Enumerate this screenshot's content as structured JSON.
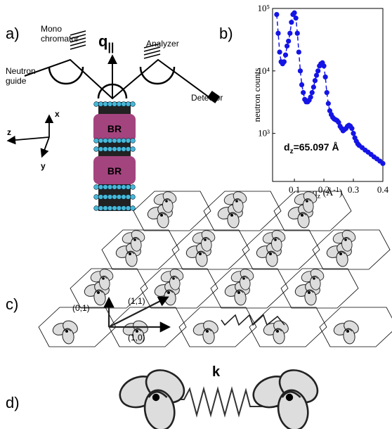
{
  "panel_a": {
    "label": "a)",
    "monochromator": [
      "Mono",
      "chromator"
    ],
    "neutron_guide": [
      "Neutron",
      "guide"
    ],
    "q": "q",
    "q_sub": "||",
    "analyzer": "Analyzer",
    "detector": "Detector",
    "br": [
      "BR",
      "BR"
    ],
    "axes": [
      "x",
      "z",
      "y"
    ]
  },
  "chart_data": {
    "type": "scatter",
    "label": "b)",
    "ylabel": "neutron counts",
    "xlabel": [
      "q",
      "z",
      " (Å",
      "-1",
      ")"
    ],
    "annotation": [
      "d",
      "z",
      "=65.097 Å"
    ],
    "log_y": true,
    "color": "#1414e6",
    "xlim": [
      0.026,
      0.4
    ],
    "ylim": [
      170,
      100000
    ],
    "xticks": [
      0.1,
      0.2,
      0.3,
      0.4
    ],
    "yticks": [
      {
        "value": 1000,
        "label": "10³"
      },
      {
        "value": 10000,
        "label": "10⁴"
      },
      {
        "value": 100000,
        "label": "10⁵"
      }
    ],
    "x": [
      0.04,
      0.045,
      0.05,
      0.055,
      0.06,
      0.065,
      0.07,
      0.075,
      0.08,
      0.085,
      0.09,
      0.095,
      0.1,
      0.105,
      0.11,
      0.115,
      0.12,
      0.125,
      0.13,
      0.135,
      0.14,
      0.145,
      0.15,
      0.155,
      0.16,
      0.165,
      0.17,
      0.175,
      0.18,
      0.185,
      0.19,
      0.195,
      0.2,
      0.205,
      0.21,
      0.215,
      0.22,
      0.225,
      0.23,
      0.235,
      0.24,
      0.245,
      0.25,
      0.255,
      0.26,
      0.265,
      0.27,
      0.275,
      0.28,
      0.285,
      0.29,
      0.295,
      0.3,
      0.305,
      0.31,
      0.315,
      0.32,
      0.33,
      0.34,
      0.35,
      0.36,
      0.37,
      0.38,
      0.39,
      0.4
    ],
    "values": [
      80000,
      40000,
      20000,
      14000,
      13000,
      14000,
      18000,
      25000,
      30000,
      40000,
      60000,
      80000,
      85000,
      70000,
      40000,
      20000,
      10000,
      6000,
      4500,
      3500,
      3200,
      3200,
      3400,
      3800,
      4500,
      5500,
      7000,
      8500,
      10000,
      12000,
      13000,
      13500,
      12000,
      8000,
      4500,
      3000,
      2300,
      2000,
      1800,
      1700,
      1650,
      1600,
      1500,
      1300,
      1200,
      1100,
      1150,
      1200,
      1300,
      1350,
      1300,
      1200,
      1000,
      850,
      750,
      680,
      640,
      590,
      540,
      500,
      460,
      420,
      390,
      360,
      330
    ]
  },
  "panel_c": {
    "label": "c)",
    "vectors": [
      "(0,1)",
      "(1,1)",
      "(1,0)"
    ]
  },
  "panel_d": {
    "label": "d)",
    "spring": "k"
  }
}
